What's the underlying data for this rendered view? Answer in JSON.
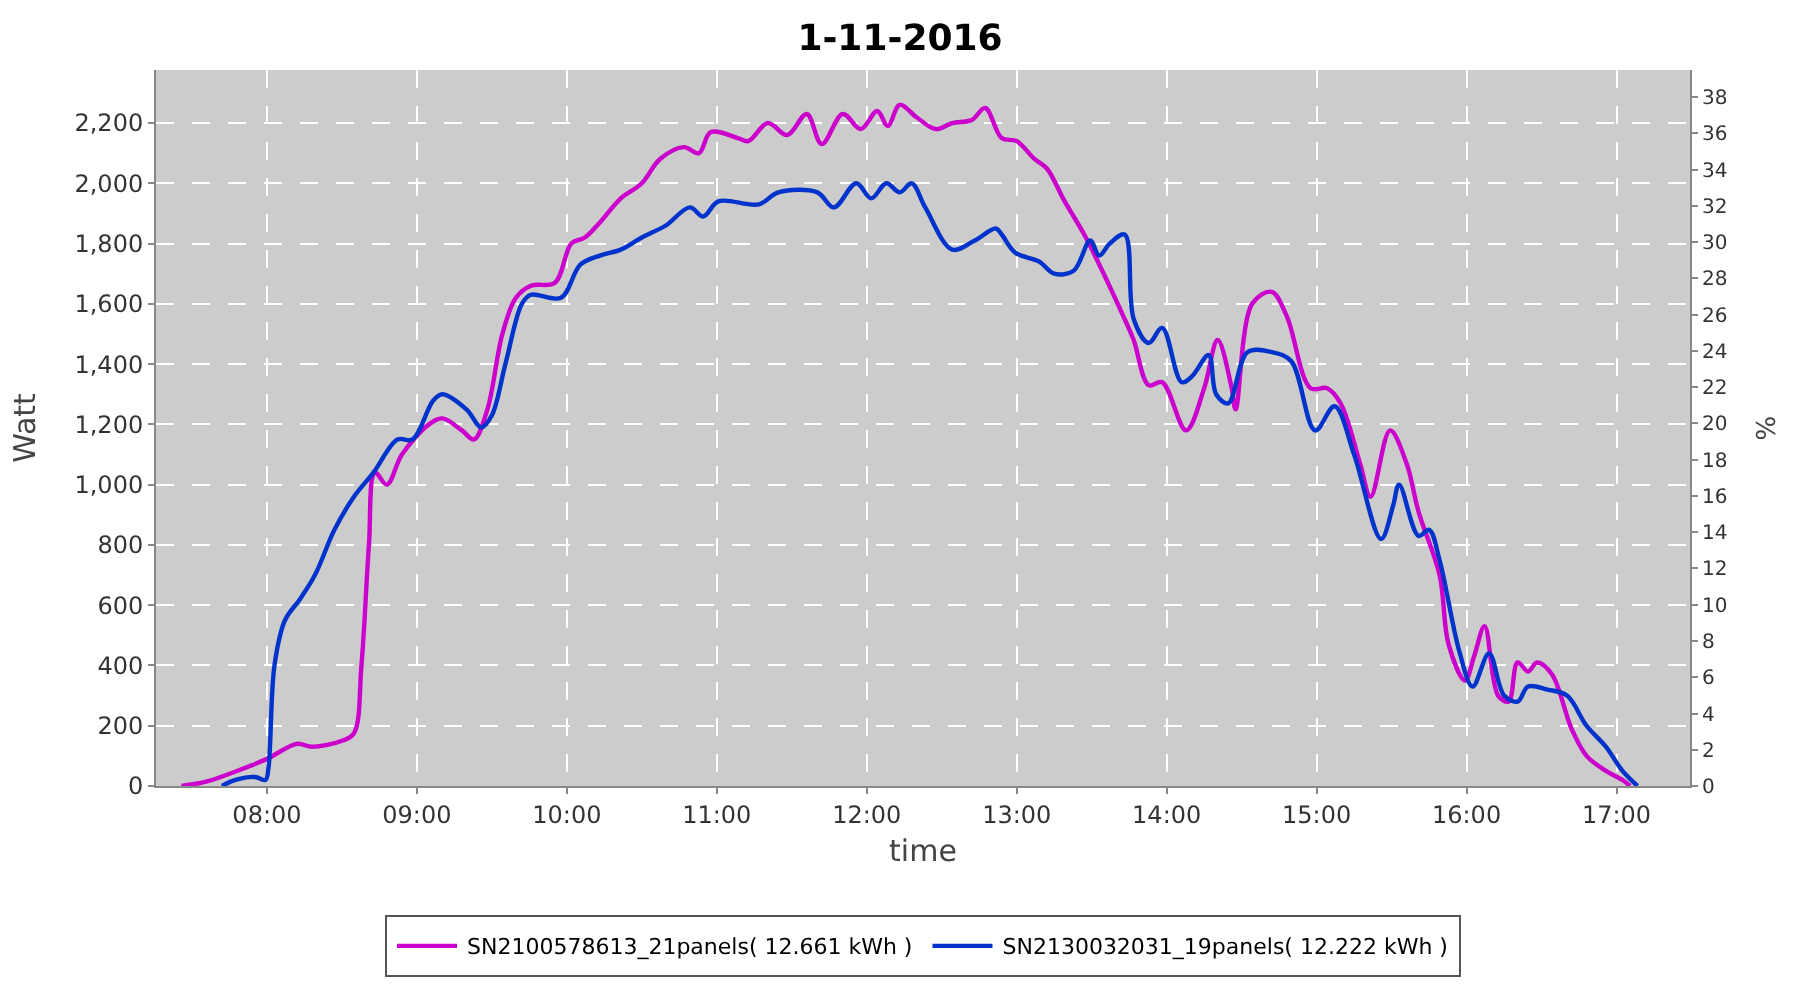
{
  "chart_data": {
    "type": "line",
    "title": "1-11-2016",
    "xlabel": "time",
    "ylabel": "Watt",
    "y2label": "%",
    "xlim": [
      7.26,
      17.49
    ],
    "xticks": [
      {
        "value": 8,
        "label": "08:00"
      },
      {
        "value": 9,
        "label": "09:00"
      },
      {
        "value": 10,
        "label": "10:00"
      },
      {
        "value": 11,
        "label": "11:00"
      },
      {
        "value": 12,
        "label": "12:00"
      },
      {
        "value": 13,
        "label": "13:00"
      },
      {
        "value": 14,
        "label": "14:00"
      },
      {
        "value": 15,
        "label": "15:00"
      },
      {
        "value": 16,
        "label": "16:00"
      },
      {
        "value": 17,
        "label": "17:00"
      }
    ],
    "ylim": [
      0,
      2376
    ],
    "yticks": [
      0,
      {
        "value": 200,
        "label": "200"
      },
      {
        "value": 400,
        "label": "400"
      },
      {
        "value": 600,
        "label": "600"
      },
      {
        "value": 800,
        "label": "800"
      },
      {
        "value": 1000,
        "label": "1,000"
      },
      {
        "value": 1200,
        "label": "1,200"
      },
      {
        "value": 1400,
        "label": "1,400"
      },
      {
        "value": 1600,
        "label": "1,600"
      },
      {
        "value": 1800,
        "label": "1,800"
      },
      {
        "value": 2000,
        "label": "2,000"
      },
      {
        "value": 2200,
        "label": "2,200"
      }
    ],
    "y2lim": [
      0,
      39.5
    ],
    "y2ticks": [
      0,
      2,
      4,
      6,
      8,
      10,
      12,
      14,
      16,
      18,
      20,
      22,
      24,
      26,
      28,
      30,
      32,
      34,
      36,
      38
    ],
    "grid": true,
    "legend": "bottom",
    "marker": "none",
    "line_style": "solid",
    "series": [
      {
        "name": "SN2100578613_21panels( 12.661 kWh )",
        "color": "#cc00cc",
        "x": [
          7.43,
          7.6,
          7.8,
          8.0,
          8.2,
          8.3,
          8.5,
          8.58,
          8.63,
          8.68,
          8.72,
          8.8,
          8.9,
          9.08,
          9.17,
          9.3,
          9.38,
          9.47,
          9.57,
          9.66,
          9.76,
          9.92,
          10.03,
          10.12,
          10.22,
          10.36,
          10.5,
          10.62,
          10.78,
          10.88,
          10.96,
          11.14,
          11.21,
          11.34,
          11.47,
          11.6,
          11.7,
          11.84,
          11.96,
          12.07,
          12.14,
          12.22,
          12.33,
          12.46,
          12.57,
          12.7,
          12.79,
          12.9,
          13.0,
          13.12,
          13.2,
          13.32,
          13.45,
          13.58,
          13.71,
          13.78,
          13.88,
          13.97,
          14.13,
          14.25,
          14.34,
          14.43,
          14.46,
          14.57,
          14.7,
          14.8,
          14.96,
          15.07,
          15.16,
          15.29,
          15.36,
          15.49,
          15.6,
          15.68,
          15.82,
          15.88,
          15.99,
          16.05,
          16.12,
          16.21,
          16.28,
          16.34,
          16.41,
          16.47,
          16.57,
          16.7,
          16.8,
          16.93,
          17.04,
          17.09
        ],
        "values": [
          0,
          15,
          50,
          90,
          140,
          130,
          150,
          175,
          400,
          800,
          1040,
          1000,
          1100,
          1200,
          1220,
          1180,
          1150,
          1250,
          1500,
          1620,
          1660,
          1670,
          1800,
          1820,
          1870,
          1950,
          2000,
          2080,
          2120,
          2100,
          2170,
          2150,
          2140,
          2200,
          2160,
          2230,
          2130,
          2230,
          2180,
          2240,
          2190,
          2260,
          2220,
          2180,
          2200,
          2210,
          2250,
          2150,
          2140,
          2080,
          2050,
          1940,
          1830,
          1700,
          1560,
          1480,
          1330,
          1340,
          1180,
          1320,
          1480,
          1330,
          1250,
          1600,
          1640,
          1560,
          1320,
          1320,
          1270,
          1070,
          960,
          1180,
          1070,
          910,
          700,
          470,
          350,
          430,
          530,
          300,
          280,
          410,
          380,
          410,
          370,
          190,
          100,
          50,
          20,
          0
        ]
      },
      {
        "name": "SN2130032031_19panels( 12.222 kWh )",
        "color": "#0033cc",
        "x": [
          7.7,
          7.79,
          7.92,
          7.99,
          8.01,
          8.05,
          8.12,
          8.22,
          8.32,
          8.45,
          8.58,
          8.71,
          8.87,
          8.97,
          9.11,
          9.17,
          9.33,
          9.43,
          9.5,
          9.59,
          9.7,
          9.76,
          9.96,
          10.09,
          10.22,
          10.36,
          10.5,
          10.66,
          10.82,
          10.91,
          11.01,
          11.28,
          11.41,
          11.67,
          11.78,
          11.93,
          12.03,
          12.13,
          12.22,
          12.3,
          12.39,
          12.57,
          12.72,
          12.86,
          12.9,
          12.99,
          13.15,
          13.25,
          13.38,
          13.49,
          13.55,
          13.62,
          13.72,
          13.78,
          13.88,
          13.97,
          14.1,
          14.17,
          14.28,
          14.33,
          14.41,
          14.54,
          14.7,
          14.83,
          14.99,
          15.12,
          15.25,
          15.43,
          15.51,
          15.55,
          15.68,
          15.75,
          15.82,
          15.95,
          16.04,
          16.15,
          16.25,
          16.34,
          16.41,
          16.54,
          16.67,
          16.8,
          16.93,
          17.04,
          17.14
        ],
        "values": [
          0,
          20,
          30,
          20,
          60,
          400,
          550,
          620,
          700,
          850,
          960,
          1040,
          1150,
          1150,
          1280,
          1300,
          1250,
          1190,
          1230,
          1400,
          1600,
          1630,
          1620,
          1730,
          1760,
          1780,
          1820,
          1860,
          1920,
          1890,
          1940,
          1930,
          1970,
          1970,
          1920,
          2000,
          1950,
          2000,
          1970,
          2000,
          1920,
          1780,
          1810,
          1850,
          1830,
          1770,
          1740,
          1700,
          1710,
          1810,
          1760,
          1800,
          1830,
          1550,
          1470,
          1520,
          1340,
          1360,
          1430,
          1300,
          1270,
          1440,
          1440,
          1410,
          1180,
          1260,
          1100,
          820,
          930,
          1000,
          830,
          850,
          750,
          450,
          330,
          440,
          300,
          280,
          330,
          320,
          300,
          200,
          130,
          50,
          0
        ]
      }
    ]
  }
}
